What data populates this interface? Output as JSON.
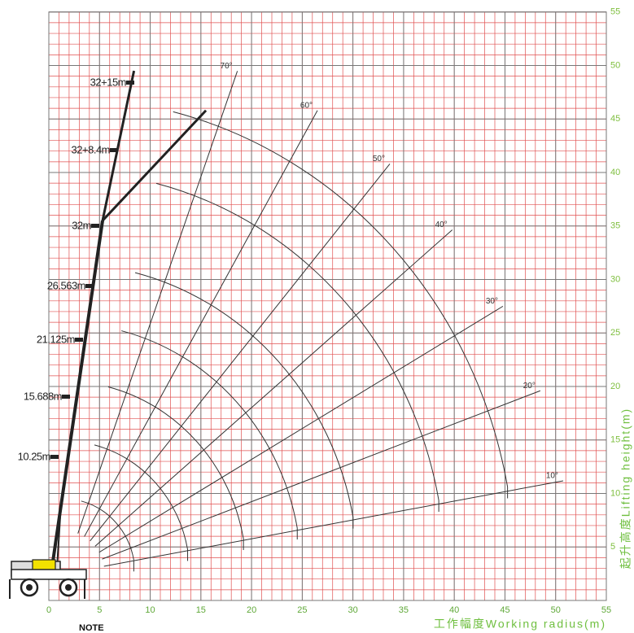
{
  "chart_data": {
    "type": "range",
    "xlabel": "工作幅度Working radius(m)",
    "ylabel": "起升高度Lifting height(m)",
    "xlim": [
      0,
      55
    ],
    "ylim": [
      0,
      55
    ],
    "xticks": [
      0,
      5,
      10,
      15,
      20,
      25,
      30,
      35,
      40,
      45,
      50,
      55
    ],
    "yticks": [
      5,
      10,
      15,
      20,
      25,
      30,
      35,
      40,
      45,
      50,
      55
    ],
    "grid": true,
    "boom_labels": [
      "32+15m",
      "32+8.4m",
      "32m",
      "26.563m",
      "21.125m",
      "15.688m",
      "10.25m"
    ],
    "angles": [
      {
        "value": 70,
        "label": "70°"
      },
      {
        "value": 60,
        "label": "60°"
      },
      {
        "value": 50,
        "label": "50°"
      },
      {
        "value": 40,
        "label": "40°"
      },
      {
        "value": 30,
        "label": "30°"
      },
      {
        "value": 20,
        "label": "20°"
      },
      {
        "value": 10,
        "label": "10°"
      }
    ]
  },
  "note": "NOTE"
}
